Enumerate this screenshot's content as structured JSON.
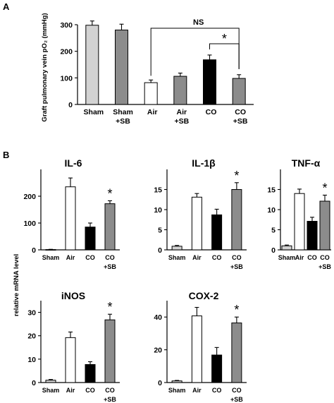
{
  "panel_labels": {
    "a": "A",
    "b": "B"
  },
  "shared_ylabel": "relative mRNA level",
  "colors": {
    "light_grey": "#d2d2d2",
    "white": "#ffffff",
    "black": "#000000",
    "dark_grey": "#8c8c8c"
  },
  "chart_data": [
    {
      "id": "A",
      "type": "bar",
      "title": "",
      "ylabel": "Graft pulmonary vein pO₂ (mmHg)",
      "xlabel": "",
      "categories": [
        [
          "Sham"
        ],
        [
          "Sham",
          "+SB"
        ],
        [
          "Air"
        ],
        [
          "Air",
          "+SB"
        ],
        [
          "CO"
        ],
        [
          "CO",
          "+SB"
        ]
      ],
      "values": [
        298,
        280,
        82,
        106,
        168,
        98
      ],
      "errors": [
        16,
        22,
        10,
        12,
        18,
        14
      ],
      "fills": [
        "light_grey",
        "dark_grey",
        "white",
        "dark_grey",
        "black",
        "dark_grey"
      ],
      "ylim": [
        0,
        300
      ],
      "yticks": [
        0,
        100,
        200,
        300
      ],
      "annotations": [
        {
          "type": "bracket",
          "from": 2,
          "to": 5,
          "label": "NS"
        },
        {
          "type": "bracket",
          "from": 4,
          "to": 5,
          "label": "*"
        }
      ],
      "grid": false
    },
    {
      "id": "IL-6",
      "type": "bar",
      "title": "IL-6",
      "categories": [
        [
          "Sham"
        ],
        [
          "Air"
        ],
        [
          "CO"
        ],
        [
          "CO",
          "+SB"
        ]
      ],
      "values": [
        1,
        235,
        85,
        172
      ],
      "errors": [
        1,
        33,
        15,
        11
      ],
      "fills": [
        "light_grey",
        "white",
        "black",
        "dark_grey"
      ],
      "ylim": [
        0,
        300
      ],
      "yticks": [
        0,
        100,
        200
      ],
      "annotations": [
        {
          "type": "star",
          "index": 3,
          "label": "*"
        }
      ],
      "grid": false
    },
    {
      "id": "IL-1b",
      "type": "bar",
      "title": "IL-1β",
      "categories": [
        [
          "Sham"
        ],
        [
          "Air"
        ],
        [
          "CO"
        ],
        [
          "CO",
          "+SB"
        ]
      ],
      "values": [
        0.9,
        13.1,
        8.7,
        15.0
      ],
      "errors": [
        0.2,
        0.9,
        1.4,
        1.7
      ],
      "fills": [
        "light_grey",
        "white",
        "black",
        "dark_grey"
      ],
      "ylim": [
        0,
        20
      ],
      "yticks": [
        0,
        5,
        10,
        15
      ],
      "annotations": [
        {
          "type": "star",
          "index": 3,
          "label": "*"
        }
      ],
      "grid": false
    },
    {
      "id": "TNF-a",
      "type": "bar",
      "title": "TNF-α",
      "categories": [
        [
          "Sham"
        ],
        [
          "Air"
        ],
        [
          "CO"
        ],
        [
          "CO",
          "+SB"
        ]
      ],
      "values": [
        1,
        14,
        7.1,
        12.1
      ],
      "errors": [
        0.2,
        1.1,
        1.0,
        1.5
      ],
      "fills": [
        "light_grey",
        "white",
        "black",
        "dark_grey"
      ],
      "ylim": [
        0,
        20
      ],
      "yticks": [
        0,
        5,
        10,
        15
      ],
      "annotations": [
        {
          "type": "star",
          "index": 3,
          "label": "*"
        }
      ],
      "grid": false
    },
    {
      "id": "iNOS",
      "type": "bar",
      "title": "iNOS",
      "categories": [
        [
          "Sham"
        ],
        [
          "Air"
        ],
        [
          "CO"
        ],
        [
          "CO",
          "+SB"
        ]
      ],
      "values": [
        1,
        19.2,
        7.7,
        26.8
      ],
      "errors": [
        0.3,
        2.4,
        1.2,
        2.4
      ],
      "fills": [
        "light_grey",
        "white",
        "black",
        "dark_grey"
      ],
      "ylim": [
        0,
        35
      ],
      "yticks": [
        0,
        10,
        20,
        30
      ],
      "annotations": [
        {
          "type": "star",
          "index": 3,
          "label": "*"
        }
      ],
      "grid": false
    },
    {
      "id": "COX-2",
      "type": "bar",
      "title": "COX-2",
      "categories": [
        [
          "Sham"
        ],
        [
          "Air"
        ],
        [
          "CO"
        ],
        [
          "CO",
          "+SB"
        ]
      ],
      "values": [
        1,
        40.7,
        16.8,
        36.4
      ],
      "errors": [
        0.3,
        5.2,
        4.6,
        3.6
      ],
      "fills": [
        "light_grey",
        "white",
        "black",
        "dark_grey"
      ],
      "ylim": [
        0,
        50
      ],
      "yticks": [
        0,
        20,
        40
      ],
      "annotations": [
        {
          "type": "star",
          "index": 3,
          "label": "*"
        }
      ],
      "grid": false
    }
  ]
}
